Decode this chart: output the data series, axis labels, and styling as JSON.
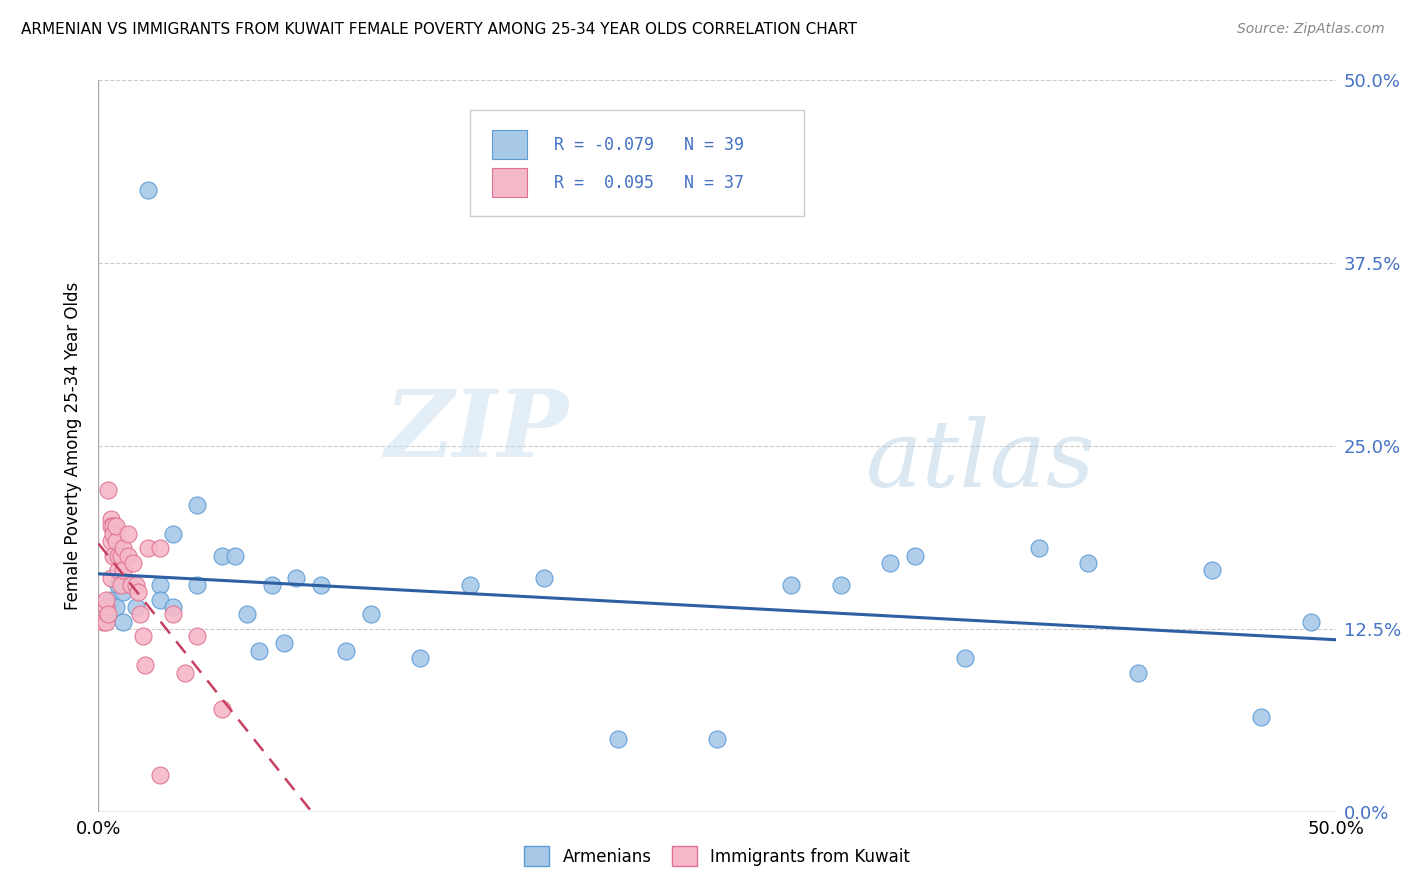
{
  "title": "ARMENIAN VS IMMIGRANTS FROM KUWAIT FEMALE POVERTY AMONG 25-34 YEAR OLDS CORRELATION CHART",
  "source": "Source: ZipAtlas.com",
  "ylabel": "Female Poverty Among 25-34 Year Olds",
  "ytick_labels": [
    "0.0%",
    "12.5%",
    "25.0%",
    "37.5%",
    "50.0%"
  ],
  "ytick_values": [
    0.0,
    0.125,
    0.25,
    0.375,
    0.5
  ],
  "xlim": [
    0.0,
    0.5
  ],
  "ylim": [
    0.0,
    0.5
  ],
  "legend_label1": "Armenians",
  "legend_label2": "Immigrants from Kuwait",
  "legend_r1": "-0.079",
  "legend_n1": "39",
  "legend_r2": "0.095",
  "legend_n2": "37",
  "color_armenian_fill": "#a8c8e8",
  "color_armenian_edge": "#5b9bd5",
  "color_kuwait_fill": "#f4b8c8",
  "color_kuwait_edge": "#e07090",
  "color_line_armenian": "#2e5fa3",
  "color_line_kuwait": "#c84060",
  "color_tick_label": "#4472c4",
  "background_color": "#ffffff",
  "watermark_zip": "ZIP",
  "watermark_atlas": "atlas",
  "armenian_x": [
    0.005,
    0.007,
    0.008,
    0.01,
    0.01,
    0.015,
    0.02,
    0.025,
    0.025,
    0.03,
    0.03,
    0.04,
    0.04,
    0.05,
    0.055,
    0.06,
    0.065,
    0.07,
    0.075,
    0.08,
    0.09,
    0.1,
    0.11,
    0.13,
    0.15,
    0.18,
    0.21,
    0.25,
    0.28,
    0.3,
    0.32,
    0.33,
    0.35,
    0.38,
    0.4,
    0.42,
    0.45,
    0.47,
    0.49
  ],
  "armenian_y": [
    0.145,
    0.14,
    0.155,
    0.13,
    0.15,
    0.14,
    0.425,
    0.155,
    0.145,
    0.14,
    0.19,
    0.21,
    0.155,
    0.175,
    0.175,
    0.135,
    0.11,
    0.155,
    0.115,
    0.16,
    0.155,
    0.11,
    0.135,
    0.105,
    0.155,
    0.16,
    0.05,
    0.05,
    0.155,
    0.155,
    0.17,
    0.175,
    0.105,
    0.18,
    0.17,
    0.095,
    0.165,
    0.065,
    0.13
  ],
  "kuwait_x": [
    0.002,
    0.003,
    0.003,
    0.003,
    0.004,
    0.004,
    0.005,
    0.005,
    0.005,
    0.005,
    0.006,
    0.006,
    0.006,
    0.007,
    0.007,
    0.008,
    0.008,
    0.009,
    0.009,
    0.01,
    0.01,
    0.012,
    0.012,
    0.013,
    0.014,
    0.015,
    0.016,
    0.017,
    0.018,
    0.019,
    0.02,
    0.025,
    0.03,
    0.035,
    0.04,
    0.05,
    0.025
  ],
  "kuwait_y": [
    0.13,
    0.14,
    0.13,
    0.145,
    0.135,
    0.22,
    0.2,
    0.195,
    0.185,
    0.16,
    0.195,
    0.175,
    0.19,
    0.185,
    0.195,
    0.175,
    0.165,
    0.175,
    0.155,
    0.18,
    0.165,
    0.19,
    0.175,
    0.155,
    0.17,
    0.155,
    0.15,
    0.135,
    0.12,
    0.1,
    0.18,
    0.18,
    0.135,
    0.095,
    0.12,
    0.07,
    0.025
  ]
}
